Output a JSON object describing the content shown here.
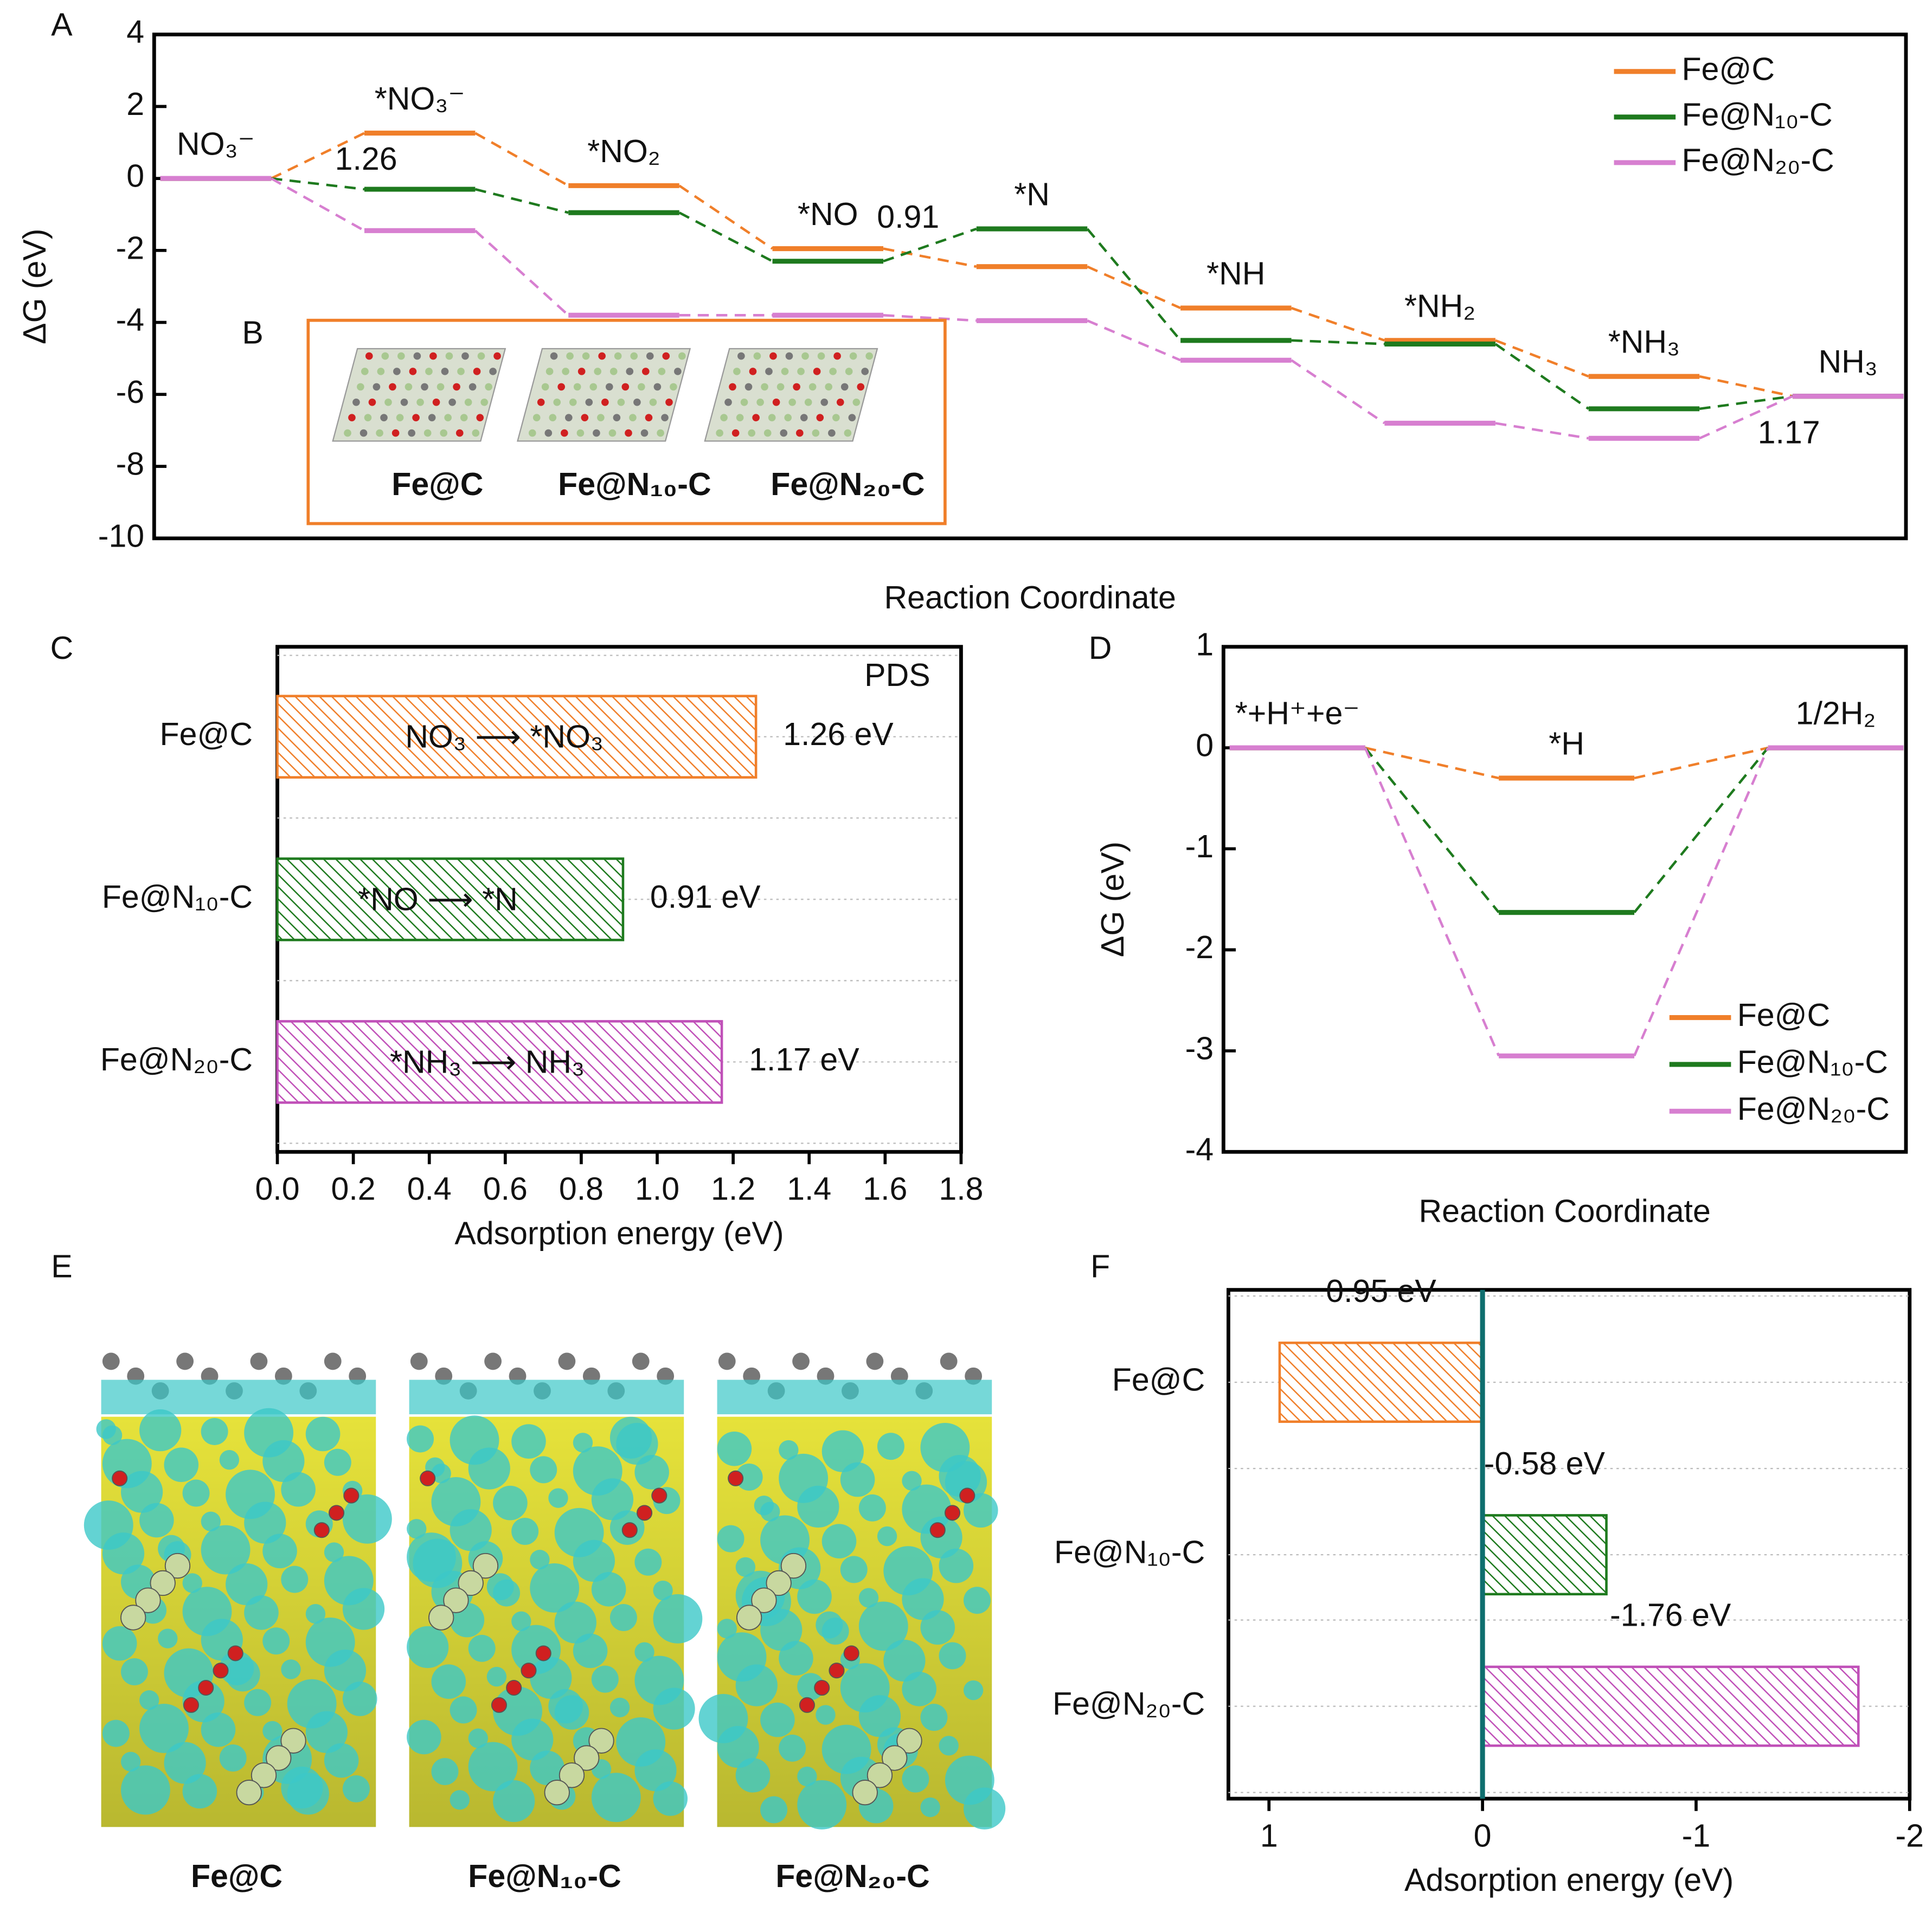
{
  "chart_data": [
    {
      "type": "energy",
      "panel": "A",
      "ylabel": "ΔG (eV)",
      "xlabel": "Reaction Coordinate",
      "categories": [
        "NO₃⁻",
        "*NO₃⁻",
        "*NO₂",
        "*NO",
        "*N",
        "*NH",
        "*NH₂",
        "*NH₃",
        "NH₃"
      ],
      "series": [
        {
          "name": "Fe@C",
          "color": "#f07f2a",
          "values": [
            0,
            1.26,
            -0.2,
            -1.95,
            -2.45,
            -3.6,
            -4.5,
            -5.5,
            -6.05
          ]
        },
        {
          "name": "Fe@N₁₀-C",
          "color": "#1e7a1e",
          "values": [
            0,
            -0.3,
            -0.95,
            -2.3,
            -1.4,
            -4.5,
            -4.6,
            -6.4,
            -6.05
          ]
        },
        {
          "name": "Fe@N₂₀-C",
          "color": "#d77fd0",
          "values": [
            0,
            -1.45,
            -3.8,
            -3.8,
            -3.95,
            -5.05,
            -6.8,
            -7.22,
            -6.05
          ]
        }
      ],
      "annotations": [
        {
          "text": "1.26",
          "color": "#f07f2a"
        },
        {
          "text": "0.91",
          "color": "#1e7a1e"
        },
        {
          "text": "1.17",
          "color": "#d77fd0"
        }
      ],
      "ylim": [
        -10,
        4
      ],
      "yticks": [
        -10,
        -8,
        -6,
        -4,
        -2,
        0,
        2,
        4
      ],
      "legend": "upper right",
      "inset": {
        "panel": "B",
        "labels": [
          {
            "text": "Fe@C",
            "color": "#f5a623"
          },
          {
            "text": "Fe@N₁₀-C",
            "color": "#3f7f1f"
          },
          {
            "text": "Fe@N₂₀-C",
            "color": "#e07fdc"
          }
        ]
      }
    },
    {
      "type": "hbar",
      "panel": "C",
      "xlabel": "Adsorption energy (eV)",
      "categories": [
        "Fe@C",
        "Fe@N₁₀-C",
        "Fe@N₂₀-C"
      ],
      "colors": [
        "#f07f2a",
        "#1e7a1e",
        "#c050b8"
      ],
      "values": [
        1.26,
        0.91,
        1.17
      ],
      "value_labels": [
        "1.26 eV",
        "0.91 eV",
        "1.17 eV"
      ],
      "bar_texts": [
        "NO₃ ⟶ *NO₃",
        "*NO ⟶ *N",
        "*NH₃ ⟶ NH₃"
      ],
      "annotation": "PDS",
      "xlim": [
        0,
        1.8
      ],
      "xticks": [
        {
          "value": 0,
          "label": "0.0"
        },
        0.2,
        0.4,
        0.6,
        0.8,
        {
          "value": 1,
          "label": "1.0"
        },
        1.2,
        1.4,
        1.6,
        1.8
      ],
      "grid": true
    },
    {
      "type": "energy",
      "panel": "D",
      "ylabel": "ΔG (eV)",
      "xlabel": "Reaction Coordinate",
      "categories": [
        "*+H⁺+e⁻",
        "*H",
        "1/2H₂"
      ],
      "series": [
        {
          "name": "Fe@C",
          "color": "#f07f2a",
          "values": [
            0,
            -0.3,
            0
          ]
        },
        {
          "name": "Fe@N₁₀-C",
          "color": "#1e7a1e",
          "values": [
            0,
            -1.63,
            0
          ]
        },
        {
          "name": "Fe@N₂₀-C",
          "color": "#d77fd0",
          "values": [
            0,
            -3.05,
            0
          ]
        }
      ],
      "ylim": [
        -4,
        1
      ],
      "yticks": [
        -4,
        -3,
        -2,
        -1,
        0,
        1
      ],
      "legend": "lower right"
    },
    {
      "type": "hbar",
      "panel": "F",
      "xlabel": "Adsorption energy (eV)",
      "categories": [
        "Fe@C",
        "Fe@N₁₀-C",
        "Fe@N₂₀-C"
      ],
      "colors": [
        "#f07f2a",
        "#1e7a1e",
        "#c050b8"
      ],
      "values": [
        0.95,
        -0.58,
        -1.76
      ],
      "value_labels": [
        "0.95 eV",
        "-0.58 eV",
        "-1.76 eV"
      ],
      "xlim": [
        1.19,
        -2
      ],
      "xticks": [
        1,
        0,
        -1,
        -2
      ],
      "grid": true
    }
  ],
  "images": {
    "panel": "E",
    "labels": [
      "Fe@C",
      "Fe@N₁₀-C",
      "Fe@N₂₀-C"
    ]
  }
}
